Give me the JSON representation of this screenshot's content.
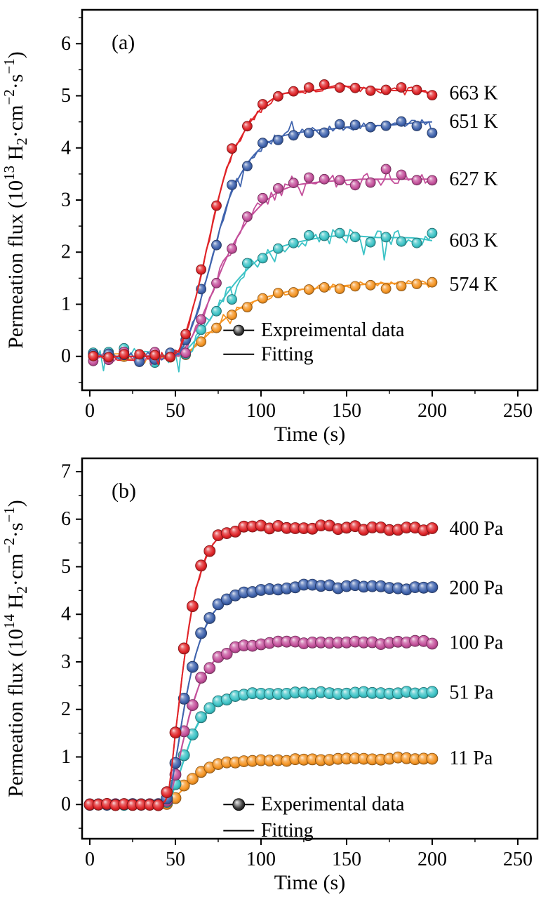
{
  "page": {
    "background": "#ffffff",
    "text_color": "#000000"
  },
  "chart_data": [
    {
      "id": "a",
      "type": "line",
      "panel_tag": "(a)",
      "xlabel": "Time (s)",
      "ylabel_parts": [
        [
          "Permeation flux (10",
          "n"
        ],
        [
          "13",
          "sup"
        ],
        [
          " H",
          "n"
        ],
        [
          "2",
          "sub"
        ],
        [
          "·cm",
          "n"
        ],
        [
          "−2",
          "sup"
        ],
        [
          "·s",
          "n"
        ],
        [
          "−1",
          "sup"
        ],
        [
          ")",
          "n"
        ]
      ],
      "xlim": [
        -4.5,
        261.5
      ],
      "ylim": [
        -0.65,
        6.65
      ],
      "xticks": [
        0,
        50,
        100,
        150,
        200,
        250
      ],
      "yticks": [
        0,
        1,
        2,
        3,
        4,
        5,
        6
      ],
      "x_minor_step": 25,
      "y_minor_step": 0.5,
      "marker_step": 9,
      "marker_start": 2,
      "marker_r": 7,
      "spike_p": 0.07,
      "baseline_noise_scale": 1,
      "label_x": 210,
      "legend": {
        "experimental_label": "Expreimental data",
        "fitting_label": "Fitting",
        "line_x1": 78,
        "line_x2": 96,
        "icon_x": 87,
        "text_x": 100,
        "row1_y": 0.5,
        "row2_y": 0.04
      },
      "x": [
        0,
        10,
        20,
        30,
        40,
        50,
        60,
        70,
        80,
        90,
        100,
        110,
        120,
        130,
        140,
        150,
        160,
        170,
        180,
        190,
        200
      ],
      "series": [
        {
          "name": "663 K",
          "color": "#e02428",
          "noise": 0.08,
          "seed": 101,
          "y": [
            0,
            0,
            0,
            0,
            0,
            0.05,
            0.9,
            2.3,
            3.6,
            4.3,
            4.75,
            5.0,
            5.08,
            5.1,
            5.15,
            5.18,
            5.15,
            5.12,
            5.1,
            5.1,
            5.05
          ]
        },
        {
          "name": "651 K",
          "color": "#3f63ad",
          "noise": 0.08,
          "seed": 102,
          "y": [
            0,
            0,
            0,
            0,
            0,
            0.02,
            0.6,
            1.7,
            2.9,
            3.6,
            4.0,
            4.2,
            4.28,
            4.33,
            4.36,
            4.4,
            4.42,
            4.43,
            4.45,
            4.48,
            4.5
          ]
        },
        {
          "name": "627 K",
          "color": "#c4509b",
          "noise": 0.12,
          "seed": 103,
          "y": [
            0,
            0,
            0,
            0,
            0,
            0,
            0.4,
            1.1,
            1.9,
            2.5,
            2.9,
            3.15,
            3.28,
            3.33,
            3.36,
            3.38,
            3.4,
            3.4,
            3.4,
            3.4,
            3.4
          ]
        },
        {
          "name": "603 K",
          "color": "#3cc3c6",
          "noise": 0.15,
          "seed": 104,
          "y": [
            0,
            0,
            0,
            0,
            0,
            0,
            0.25,
            0.7,
            1.2,
            1.6,
            1.9,
            2.08,
            2.18,
            2.25,
            2.3,
            2.32,
            2.3,
            2.28,
            2.28,
            2.27,
            2.22
          ]
        },
        {
          "name": "574 K",
          "color": "#f59524",
          "noise": 0.06,
          "seed": 105,
          "y": [
            0,
            0,
            0,
            0,
            0,
            0,
            0.15,
            0.45,
            0.75,
            0.97,
            1.1,
            1.2,
            1.27,
            1.3,
            1.33,
            1.36,
            1.38,
            1.4,
            1.4,
            1.4,
            1.38
          ]
        }
      ]
    },
    {
      "id": "b",
      "type": "line",
      "panel_tag": "(b)",
      "xlabel": "Time (s)",
      "ylabel_parts": [
        [
          "Permeation flux (10",
          "n"
        ],
        [
          "14",
          "sup"
        ],
        [
          " H",
          "n"
        ],
        [
          "2",
          "sub"
        ],
        [
          "·cm",
          "n"
        ],
        [
          "−2",
          "sup"
        ],
        [
          "·s",
          "n"
        ],
        [
          "−1",
          "sup"
        ],
        [
          ")",
          "n"
        ]
      ],
      "xlim": [
        -4.5,
        261.5
      ],
      "ylim": [
        -0.72,
        7.28
      ],
      "xticks": [
        0,
        50,
        100,
        150,
        200,
        250
      ],
      "yticks": [
        0,
        1,
        2,
        3,
        4,
        5,
        6,
        7
      ],
      "x_minor_step": 25,
      "y_minor_step": 0.5,
      "marker_step": 5,
      "marker_start": 0,
      "marker_r": 8,
      "spike_p": 0.04,
      "baseline_noise_scale": 0.3,
      "label_x": 210,
      "legend": {
        "experimental_label": "Experimental data",
        "fitting_label": "Fitting",
        "line_x1": 78,
        "line_x2": 96,
        "icon_x": 87,
        "text_x": 100,
        "row1_y": 0.0,
        "row2_y": -0.55
      },
      "x": [
        0,
        10,
        20,
        30,
        40,
        45,
        50,
        55,
        60,
        65,
        70,
        75,
        80,
        85,
        90,
        100,
        110,
        120,
        130,
        140,
        150,
        160,
        170,
        180,
        190,
        200
      ],
      "series": [
        {
          "name": "400 Pa",
          "color": "#e02428",
          "noise": 0.05,
          "seed": 201,
          "y": [
            0,
            0,
            0,
            0,
            0,
            0.1,
            1.5,
            3.0,
            4.2,
            4.9,
            5.35,
            5.6,
            5.72,
            5.78,
            5.8,
            5.82,
            5.82,
            5.83,
            5.82,
            5.82,
            5.85,
            5.82,
            5.8,
            5.8,
            5.8,
            5.8
          ]
        },
        {
          "name": "200 Pa",
          "color": "#3f63ad",
          "noise": 0.03,
          "seed": 202,
          "y": [
            0,
            0,
            0,
            0,
            0,
            0.05,
            0.9,
            2.0,
            2.9,
            3.5,
            3.9,
            4.15,
            4.3,
            4.4,
            4.45,
            4.52,
            4.55,
            4.58,
            4.6,
            4.58,
            4.57,
            4.57,
            4.56,
            4.55,
            4.55,
            4.55
          ]
        },
        {
          "name": "100 Pa",
          "color": "#c4509b",
          "noise": 0.03,
          "seed": 203,
          "y": [
            0,
            0,
            0,
            0,
            0,
            0.03,
            0.6,
            1.4,
            2.1,
            2.6,
            2.9,
            3.1,
            3.2,
            3.28,
            3.32,
            3.37,
            3.4,
            3.4,
            3.4,
            3.42,
            3.4,
            3.4,
            3.4,
            3.4,
            3.42,
            3.4
          ]
        },
        {
          "name": "51 Pa",
          "color": "#3cc3c6",
          "noise": 0.03,
          "seed": 204,
          "y": [
            0,
            0,
            0,
            0,
            0,
            0.02,
            0.4,
            0.95,
            1.45,
            1.8,
            2.0,
            2.15,
            2.22,
            2.28,
            2.3,
            2.33,
            2.35,
            2.35,
            2.35,
            2.35,
            2.35,
            2.35,
            2.33,
            2.33,
            2.35,
            2.35
          ]
        },
        {
          "name": "11 Pa",
          "color": "#f59524",
          "noise": 0.02,
          "seed": 205,
          "y": [
            0,
            0,
            0,
            0,
            0,
            0,
            0.15,
            0.35,
            0.55,
            0.68,
            0.78,
            0.83,
            0.87,
            0.89,
            0.9,
            0.92,
            0.93,
            0.94,
            0.95,
            0.95,
            0.95,
            0.96,
            0.95,
            0.97,
            0.97,
            0.97
          ]
        }
      ]
    }
  ]
}
